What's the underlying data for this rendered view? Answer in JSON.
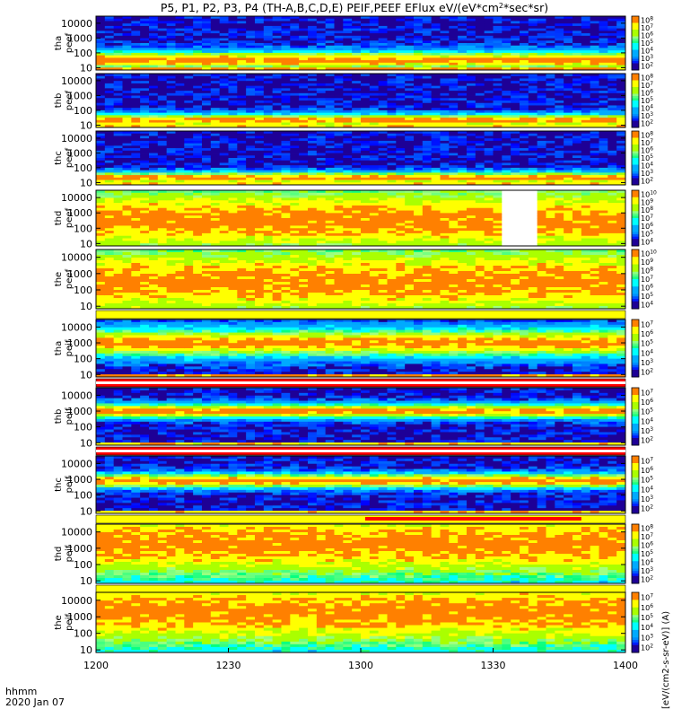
{
  "chart_data": {
    "type": "heatmap",
    "title": "P5, P1, P2, P3, P4 (TH-A,B,C,D,E) PEIF,PEEF EFlux eV/(eV*cm²*sec*sr)",
    "title_main": "P5, P1, P2, P3, P4 (TH-A,B,C,D,E) PEIF,PEEF EFlux eV/(eV*cm",
    "title_sup": "2",
    "title_tail": "*sec*sr)",
    "x_axis": {
      "ticks": [
        "1200",
        "1230",
        "1300",
        "1330",
        "1400"
      ],
      "corner_label_1": "hhmm",
      "corner_label_2": "2020 Jan 07",
      "range_minutes": [
        0,
        120
      ]
    },
    "y_axis": {
      "scale": "log",
      "ticks": [
        "10",
        "100",
        "1000",
        "10000"
      ],
      "range_eV": [
        7,
        30000
      ]
    },
    "colorbar_label": "[eV/(cm2-s-sr-eV)] (A)",
    "panels": [
      {
        "probe": "tha",
        "product": "peef",
        "label1": "tha",
        "label2": "peef",
        "cb_ticks": [
          "10^8",
          "10^7",
          "10^6",
          "10^5",
          "10^4",
          "10^3",
          "10^2"
        ],
        "peak_log_e": 1.5,
        "width_dec": 0.6,
        "low_sat": 1.0,
        "strip": ""
      },
      {
        "probe": "thb",
        "product": "peef",
        "label1": "thb",
        "label2": "peef",
        "cb_ticks": [
          "10^8",
          "10^7",
          "10^6",
          "10^5",
          "10^4",
          "10^3",
          "10^2"
        ],
        "peak_log_e": 1.3,
        "width_dec": 0.45,
        "low_sat": 0.9,
        "strip": ""
      },
      {
        "probe": "thc",
        "product": "peef",
        "label1": "thc",
        "label2": "peef",
        "cb_ticks": [
          "10^8",
          "10^7",
          "10^6",
          "10^5",
          "10^4",
          "10^3",
          "10^2"
        ],
        "peak_log_e": 1.3,
        "width_dec": 0.4,
        "low_sat": 0.9,
        "strip": ""
      },
      {
        "probe": "thd",
        "product": "peef",
        "label1": "thd",
        "label2": "peef",
        "cb_ticks": [
          "10^10",
          "10^9",
          "10^8",
          "10^7",
          "10^6",
          "10^5",
          "10^4"
        ],
        "peak_log_e": 2.5,
        "width_dec": 2.5,
        "low_sat": 0.3,
        "strip": "",
        "gap_minutes": [
          92,
          99
        ]
      },
      {
        "probe": "the",
        "product": "peef",
        "label1": "the",
        "label2": "peef",
        "cb_ticks": [
          "10^10",
          "10^9",
          "10^8",
          "10^7",
          "10^6",
          "10^5",
          "10^4"
        ],
        "peak_log_e": 2.5,
        "width_dec": 2.5,
        "low_sat": 0.3,
        "strip": "yellow"
      },
      {
        "probe": "tha",
        "product": "peif",
        "label1": "tha",
        "label2": "peif",
        "cb_ticks": [
          "10^7",
          "10^6",
          "10^5",
          "10^4",
          "10^3",
          "10^2"
        ],
        "peak_log_e": 3.0,
        "width_dec": 0.9,
        "low_sat": 1.0,
        "strip": "red"
      },
      {
        "probe": "thb",
        "product": "peif",
        "label1": "thb",
        "label2": "peif",
        "cb_ticks": [
          "10^7",
          "10^6",
          "10^5",
          "10^4",
          "10^3",
          "10^2"
        ],
        "peak_log_e": 3.0,
        "width_dec": 0.45,
        "low_sat": 0.9,
        "strip": "red"
      },
      {
        "probe": "thc",
        "product": "peif",
        "label1": "thc",
        "label2": "peif",
        "cb_ticks": [
          "10^7",
          "10^6",
          "10^5",
          "10^4",
          "10^3",
          "10^2"
        ],
        "peak_log_e": 2.9,
        "width_dec": 0.45,
        "low_sat": 0.9,
        "strip": "yellow-red",
        "red_minutes": [
          61,
          110
        ]
      },
      {
        "probe": "thd",
        "product": "peif",
        "label1": "thd",
        "label2": "peif",
        "cb_ticks": [
          "10^8",
          "10^7",
          "10^6",
          "10^5",
          "10^4",
          "10^3",
          "10^2"
        ],
        "peak_log_e": 3.3,
        "width_dec": 2.5,
        "low_sat": 0.35,
        "strip": "yellow"
      },
      {
        "probe": "the",
        "product": "peif",
        "label1": "the",
        "label2": "peif",
        "cb_ticks": [
          "10^7",
          "10^6",
          "10^5",
          "10^4",
          "10^3",
          "10^2"
        ],
        "peak_log_e": 3.3,
        "width_dec": 2.5,
        "low_sat": 0.35,
        "strip": ""
      }
    ],
    "colors": {
      "strip_yellow": "#ffff00",
      "strip_red": "#ff0000",
      "gap": "#ffffff",
      "colormap": [
        "#1e0096",
        "#0000ff",
        "#00aaff",
        "#00ffff",
        "#00ff80",
        "#aaff00",
        "#ffff00",
        "#ff8000",
        "#ff0000"
      ]
    }
  }
}
